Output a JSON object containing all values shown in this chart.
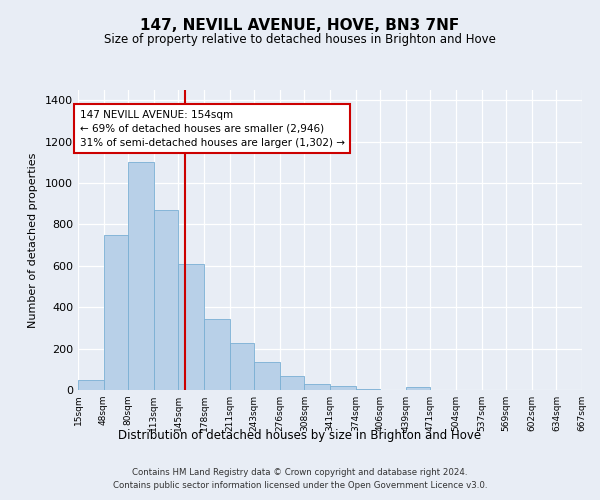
{
  "title": "147, NEVILL AVENUE, HOVE, BN3 7NF",
  "subtitle": "Size of property relative to detached houses in Brighton and Hove",
  "xlabel": "Distribution of detached houses by size in Brighton and Hove",
  "ylabel": "Number of detached properties",
  "footer_line1": "Contains HM Land Registry data © Crown copyright and database right 2024.",
  "footer_line2": "Contains public sector information licensed under the Open Government Licence v3.0.",
  "annotation_line1": "147 NEVILL AVENUE: 154sqm",
  "annotation_line2": "← 69% of detached houses are smaller (2,946)",
  "annotation_line3": "31% of semi-detached houses are larger (1,302) →",
  "bin_edges": [
    15,
    48,
    80,
    113,
    145,
    178,
    211,
    243,
    276,
    308,
    341,
    374,
    406,
    439,
    471,
    504,
    537,
    569,
    602,
    634,
    667
  ],
  "bar_heights": [
    50,
    750,
    1100,
    870,
    610,
    345,
    225,
    135,
    70,
    30,
    20,
    5,
    0,
    15,
    0,
    0,
    0,
    0,
    0,
    0
  ],
  "bar_color": "#b8d0e8",
  "bar_edge_color": "#7aafd4",
  "vline_color": "#cc0000",
  "vline_x": 154,
  "ylim": [
    0,
    1450
  ],
  "yticks": [
    0,
    200,
    400,
    600,
    800,
    1000,
    1200,
    1400
  ],
  "bg_color": "#e8edf5",
  "grid_color": "#ffffff",
  "ann_box_facecolor": "#ffffff",
  "ann_box_edgecolor": "#cc0000"
}
